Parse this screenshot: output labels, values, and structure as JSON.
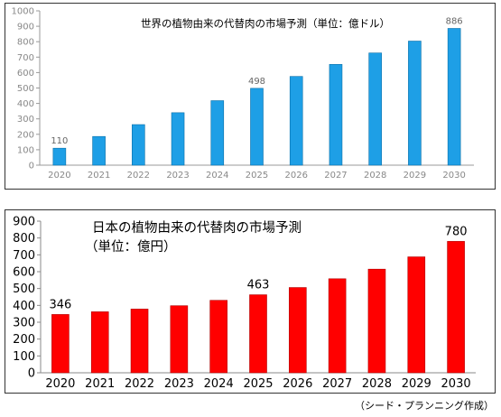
{
  "chart_data": [
    {
      "type": "bar",
      "title": "世界の植物由来の代替肉の市場予測（単位：億ドル）",
      "categories": [
        "2020",
        "2021",
        "2022",
        "2023",
        "2024",
        "2025",
        "2026",
        "2027",
        "2028",
        "2029",
        "2030"
      ],
      "values": [
        110,
        186,
        263,
        340,
        418,
        498,
        575,
        653,
        727,
        804,
        886
      ],
      "data_labels": [
        {
          "index": 0,
          "text": "110"
        },
        {
          "index": 5,
          "text": "498"
        },
        {
          "index": 10,
          "text": "886"
        }
      ],
      "ylim": [
        0,
        1000
      ],
      "yticks": [
        "0",
        "100",
        "200",
        "300",
        "400",
        "500",
        "600",
        "700",
        "800",
        "900",
        "1000"
      ],
      "bar_color": "#1E9FE6",
      "grid": false,
      "xlabel": "",
      "ylabel": ""
    },
    {
      "type": "bar",
      "title": "日本の植物由来の代替肉の市場予測",
      "subtitle": "（単位：億円）",
      "categories": [
        "2020",
        "2021",
        "2022",
        "2023",
        "2024",
        "2025",
        "2026",
        "2027",
        "2028",
        "2029",
        "2030"
      ],
      "values": [
        346,
        362,
        378,
        398,
        430,
        463,
        506,
        558,
        615,
        688,
        780
      ],
      "data_labels": [
        {
          "index": 0,
          "text": "346"
        },
        {
          "index": 5,
          "text": "463"
        },
        {
          "index": 10,
          "text": "780"
        }
      ],
      "ylim": [
        0,
        900
      ],
      "yticks": [
        "0",
        "100",
        "200",
        "300",
        "400",
        "500",
        "600",
        "700",
        "800",
        "900"
      ],
      "bar_color": "#FF0000",
      "grid": false,
      "xlabel": "",
      "ylabel": ""
    }
  ],
  "source_note": "（シード・プランニング作成）"
}
